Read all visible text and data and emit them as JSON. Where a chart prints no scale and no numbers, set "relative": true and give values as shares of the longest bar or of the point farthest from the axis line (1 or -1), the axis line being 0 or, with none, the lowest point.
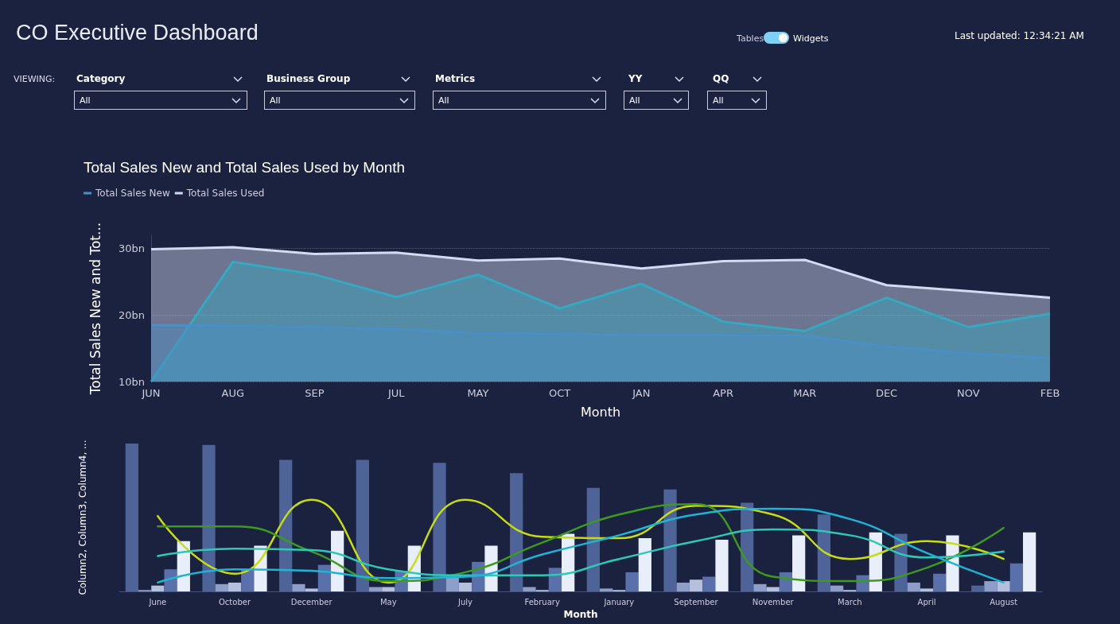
{
  "chart_data": [
    {
      "type": "other",
      "title": "CO Executive Dashboard",
      "annotations": [
        "Tables",
        "Widgets",
        "Last updated: 12:34:21 AM",
        "VIEWING:",
        "Category",
        "All",
        "Business Group",
        "All",
        "Metrics",
        "All",
        "YY",
        "All",
        "QQ",
        "All"
      ]
    },
    {
      "type": "area",
      "title": "Total Sales New and Total Sales Used by Month",
      "xlabel": "Month",
      "ylabel": "Total Sales New and Tot...",
      "categories": [
        "JUN",
        "AUG",
        "SEP",
        "JUL",
        "MAY",
        "OCT",
        "JAN",
        "APR",
        "MAR",
        "DEC",
        "NOV",
        "FEB"
      ],
      "ylim": [
        10,
        32
      ],
      "yticks": [
        {
          "value": 10,
          "label": "10bn"
        },
        {
          "value": 20,
          "label": "20bn"
        },
        {
          "value": 30,
          "label": "30bn"
        }
      ],
      "grid": "y",
      "legend": "top left",
      "series": [
        {
          "name": "Total Sales New",
          "color": "#4a8fc6",
          "values": [
            18.5,
            18.4,
            18.2,
            17.9,
            17.3,
            17.2,
            17.0,
            17.0,
            16.9,
            15.3,
            14.3,
            13.5
          ]
        },
        {
          "color": "#35a8c2",
          "values": [
            10,
            28.0,
            26.1,
            22.7,
            26.1,
            21.0,
            24.7,
            19.0,
            17.6,
            22.6,
            18.2,
            20.2
          ]
        },
        {
          "name": "Total Sales Used",
          "color": "#d3dbf2",
          "values": [
            29.9,
            30.2,
            29.2,
            29.4,
            28.2,
            28.5,
            27.0,
            28.1,
            28.3,
            24.5,
            23.6,
            22.6
          ]
        }
      ]
    },
    {
      "type": "bar",
      "relative": true,
      "xlabel": "Month",
      "ylabel": "Column2, Column3, Column4, ...",
      "tick_labels": "x",
      "categories": [
        "June",
        "October",
        "December",
        "May",
        "July",
        "February",
        "January",
        "September",
        "November",
        "March",
        "April",
        "August"
      ],
      "series": [
        {
          "color": "#4e6498",
          "values": [
            1.0,
            0.99,
            0.89,
            0.89,
            0.87,
            0.8,
            0.7,
            0.69,
            0.6,
            0.52,
            0.39,
            0.04
          ]
        },
        {
          "color": "#8d9ec8",
          "values": [
            0.01,
            0.05,
            0.05,
            0.03,
            0.1,
            0.03,
            0.02,
            0.06,
            0.05,
            0.04,
            0.06,
            0.07
          ]
        },
        {
          "color": "#b4c0dc",
          "values": [
            0.04,
            0.06,
            0.02,
            0.03,
            0.06,
            0.01,
            0.01,
            0.08,
            0.03,
            0.01,
            0.02,
            0.07
          ]
        },
        {
          "color": "#5a70aa",
          "values": [
            0.15,
            0.15,
            0.18,
            0.14,
            0.2,
            0.16,
            0.13,
            0.1,
            0.13,
            0.11,
            0.12,
            0.19
          ]
        },
        {
          "color": "#e8eefa",
          "values": [
            0.34,
            0.31,
            0.41,
            0.31,
            0.31,
            0.39,
            0.36,
            0.35,
            0.38,
            0.4,
            0.38,
            0.4
          ]
        },
        {
          "type": "line",
          "color": "#c8dc14",
          "values": [
            0.51,
            0.12,
            0.62,
            0.06,
            0.62,
            0.37,
            0.36,
            0.58,
            0.52,
            0.22,
            0.34,
            0.22
          ]
        },
        {
          "type": "line",
          "color": "#3c9a1e",
          "values": [
            0.44,
            0.44,
            0.27,
            0.07,
            0.13,
            0.33,
            0.52,
            0.59,
            0.1,
            0.07,
            0.16,
            0.43
          ]
        },
        {
          "type": "line",
          "color": "#2ec8b8",
          "values": [
            0.24,
            0.29,
            0.28,
            0.15,
            0.11,
            0.11,
            0.22,
            0.34,
            0.42,
            0.38,
            0.23,
            0.27
          ]
        },
        {
          "type": "line",
          "color": "#1eb4d8",
          "values": [
            0.06,
            0.15,
            0.14,
            0.09,
            0.1,
            0.25,
            0.38,
            0.52,
            0.56,
            0.49,
            0.26,
            0.06
          ]
        }
      ]
    }
  ]
}
